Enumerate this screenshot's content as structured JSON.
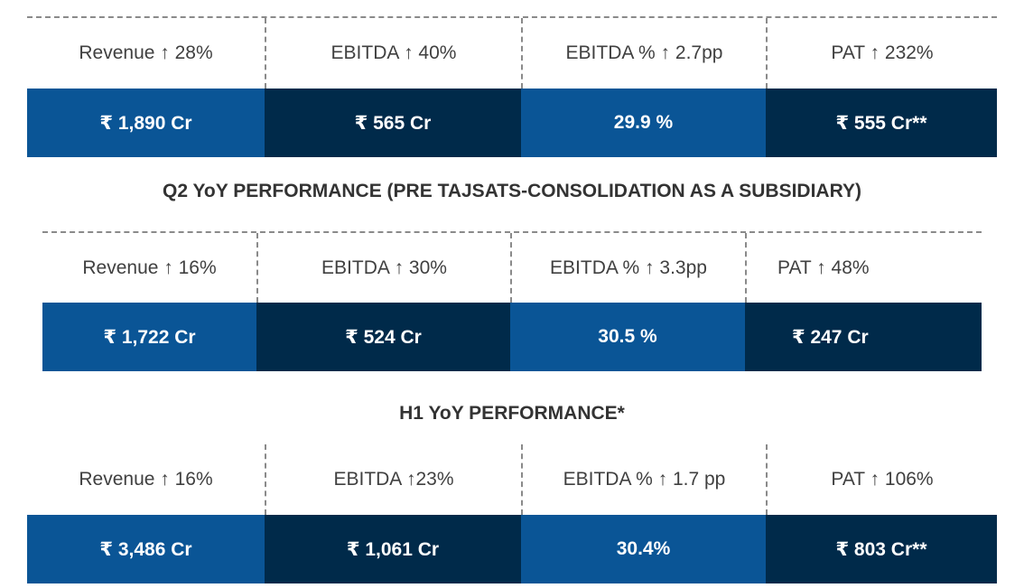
{
  "sections": [
    {
      "heading": "",
      "metrics": [
        {
          "label": "Revenue ↑ 28%",
          "value": "₹ 1,890 Cr"
        },
        {
          "label": "EBITDA ↑ 40%",
          "value": "₹ 565 Cr"
        },
        {
          "label": "EBITDA % ↑ 2.7pp",
          "value": "29.9 %"
        },
        {
          "label": "PAT ↑ 232%",
          "value": "₹ 555 Cr**"
        }
      ]
    },
    {
      "heading": "Q2 YoY PERFORMANCE (PRE TAJSATS-CONSOLIDATION AS A SUBSIDIARY)",
      "metrics": [
        {
          "label": "Revenue ↑ 16%",
          "value": "₹ 1,722 Cr"
        },
        {
          "label": "EBITDA ↑ 30%",
          "value": "₹ 524 Cr"
        },
        {
          "label": "EBITDA % ↑ 3.3pp",
          "value": "30.5 %"
        },
        {
          "label": "PAT ↑ 48%",
          "value": "₹ 247 Cr"
        }
      ]
    },
    {
      "heading": "H1 YoY PERFORMANCE*",
      "metrics": [
        {
          "label": "Revenue ↑ 16%",
          "value": "₹ 3,486 Cr"
        },
        {
          "label": "EBITDA ↑23%",
          "value": "₹ 1,061 Cr"
        },
        {
          "label": "EBITDA % ↑ 1.7 pp",
          "value": "30.4%"
        },
        {
          "label": "PAT ↑ 106%",
          "value": "₹ 803 Cr**"
        }
      ]
    }
  ],
  "colors": {
    "light_blue": "#0a5596",
    "dark_navy": "#002a4a",
    "dashes": "#8a8a8a"
  }
}
